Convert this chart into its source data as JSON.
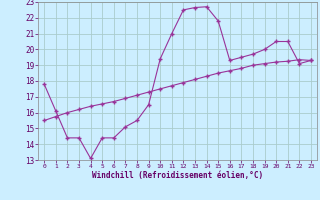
{
  "title": "",
  "xlabel": "Windchill (Refroidissement éolien,°C)",
  "ylabel": "",
  "background_color": "#cceeff",
  "grid_color": "#aacccc",
  "line_color": "#993399",
  "x_ticks": [
    0,
    1,
    2,
    3,
    4,
    5,
    6,
    7,
    8,
    9,
    10,
    11,
    12,
    13,
    14,
    15,
    16,
    17,
    18,
    19,
    20,
    21,
    22,
    23
  ],
  "y_ticks": [
    13,
    14,
    15,
    16,
    17,
    18,
    19,
    20,
    21,
    22,
    23
  ],
  "xlim": [
    -0.5,
    23.5
  ],
  "ylim": [
    13,
    23
  ],
  "line1_x": [
    0,
    1,
    2,
    3,
    4,
    5,
    6,
    7,
    8,
    9,
    10,
    11,
    12,
    13,
    14,
    15,
    16,
    17,
    18,
    19,
    20,
    21,
    22,
    23
  ],
  "line1_y": [
    17.8,
    16.1,
    14.4,
    14.4,
    13.1,
    14.4,
    14.4,
    15.1,
    15.5,
    16.5,
    19.4,
    21.0,
    22.5,
    22.65,
    22.7,
    21.8,
    19.3,
    19.5,
    19.7,
    20.0,
    20.5,
    20.5,
    19.1,
    19.3
  ],
  "line2_x": [
    0,
    1,
    2,
    3,
    4,
    5,
    6,
    7,
    8,
    9,
    10,
    11,
    12,
    13,
    14,
    15,
    16,
    17,
    18,
    19,
    20,
    21,
    22,
    23
  ],
  "line2_y": [
    15.5,
    15.75,
    16.0,
    16.2,
    16.4,
    16.55,
    16.7,
    16.9,
    17.1,
    17.3,
    17.5,
    17.7,
    17.9,
    18.1,
    18.3,
    18.5,
    18.65,
    18.8,
    19.0,
    19.1,
    19.2,
    19.25,
    19.35,
    19.3
  ],
  "marker": "+",
  "markersize": 3.5,
  "linewidth": 0.8
}
